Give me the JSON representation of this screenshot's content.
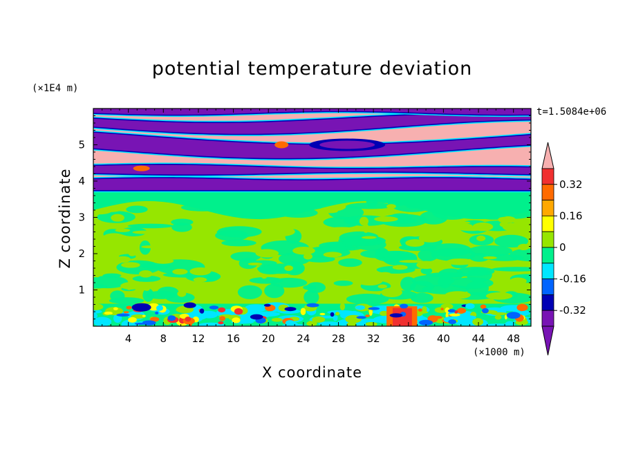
{
  "chart_data": {
    "type": "heatmap",
    "title": "potential temperature deviation",
    "xlabel": "X coordinate",
    "ylabel": "Z coordinate",
    "x_unit": "(×1000 m)",
    "y_unit": "(×1E4 m)",
    "time_label": "t=1.5084e+06",
    "xlim": [
      0,
      50
    ],
    "ylim": [
      0,
      6
    ],
    "x_ticks": [
      4,
      8,
      12,
      16,
      20,
      24,
      28,
      32,
      36,
      40,
      44,
      48
    ],
    "y_ticks": [
      1,
      2,
      3,
      4,
      5
    ],
    "colorbar": {
      "levels": [
        -0.4,
        -0.32,
        -0.24,
        -0.16,
        -0.08,
        0,
        0.08,
        0.16,
        0.24,
        0.32,
        0.4
      ],
      "labels": [
        "0.32",
        "0.16",
        "0",
        "-0.16",
        "-0.32"
      ],
      "label_values": [
        0.32,
        0.16,
        0,
        -0.16,
        -0.32
      ],
      "colors": [
        "#f7b0b0",
        "#f03030",
        "#ff6a00",
        "#ffa800",
        "#ffff00",
        "#96e600",
        "#00f08c",
        "#00e6ff",
        "#0064ff",
        "#0000b4",
        "#7814b4",
        "#7814b4"
      ]
    },
    "colors": {
      "above": "#f7b0b0",
      "below": "#7814b4",
      "band1": "#96e600",
      "band2": "#00f08c",
      "cyan": "#00e6ff",
      "blue": "#0064ff",
      "navy": "#0000b4",
      "orange": "#ff6a00",
      "red": "#f03030",
      "yellow": "#ffff00"
    }
  }
}
